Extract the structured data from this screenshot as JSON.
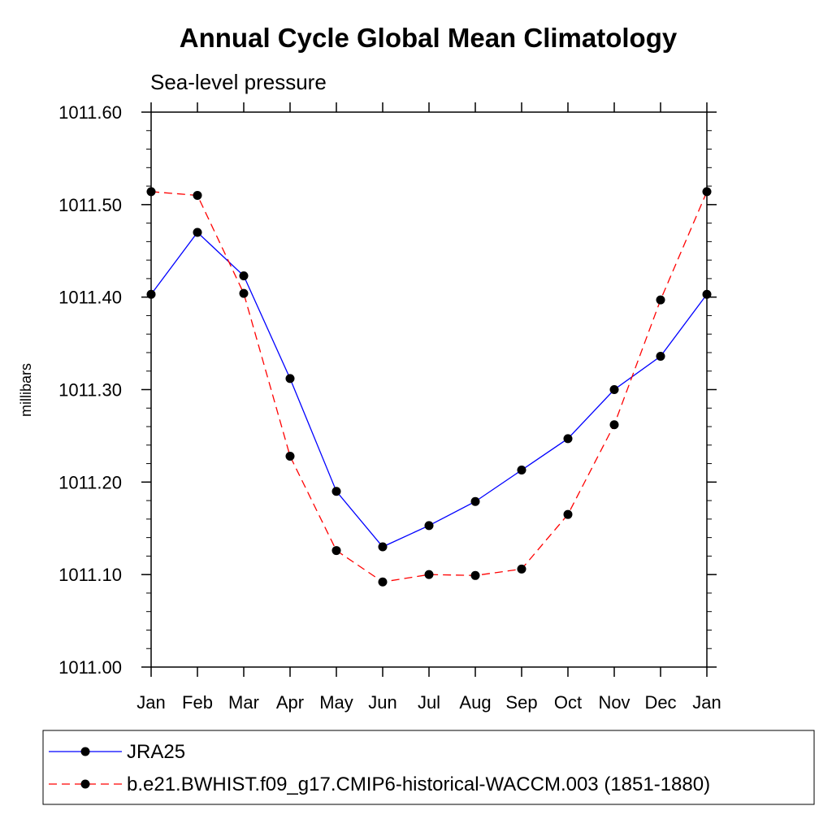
{
  "chart_data": {
    "type": "line",
    "title": "Annual Cycle Global Mean Climatology",
    "subtitle": "Sea-level pressure",
    "ylabel": "millibars",
    "xlabel": "",
    "categories": [
      "Jan",
      "Feb",
      "Mar",
      "Apr",
      "May",
      "Jun",
      "Jul",
      "Aug",
      "Sep",
      "Oct",
      "Nov",
      "Dec",
      "Jan"
    ],
    "ylim": [
      1011.0,
      1011.6
    ],
    "yticks": [
      "1011.00",
      "1011.10",
      "1011.20",
      "1011.30",
      "1011.40",
      "1011.50",
      "1011.60"
    ],
    "grid": false,
    "legend_position": "bottom",
    "series": [
      {
        "name": "JRA25",
        "color": "#0000ff",
        "dash": "solid",
        "marker": "filled-circle",
        "values": [
          1011.403,
          1011.47,
          1011.423,
          1011.312,
          1011.19,
          1011.13,
          1011.153,
          1011.179,
          1011.213,
          1011.247,
          1011.3,
          1011.336,
          1011.403
        ]
      },
      {
        "name": "b.e21.BWHIST.f09_g17.CMIP6-historical-WACCM.003 (1851-1880)",
        "color": "#ff0000",
        "dash": "dashed",
        "marker": "filled-circle",
        "values": [
          1011.514,
          1011.51,
          1011.404,
          1011.228,
          1011.126,
          1011.092,
          1011.1,
          1011.099,
          1011.106,
          1011.165,
          1011.262,
          1011.397,
          1011.514
        ]
      }
    ]
  }
}
